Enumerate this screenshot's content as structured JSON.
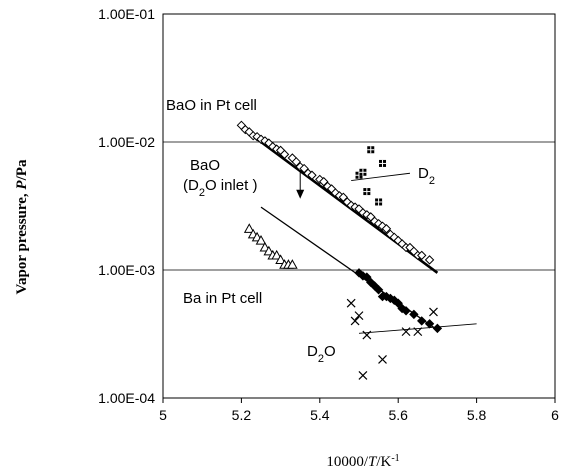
{
  "chart_data": {
    "type": "scatter",
    "xlabel": "10000/T/K-1",
    "ylabel": "Vapor pressure, P/Pa",
    "xlim": [
      5,
      6
    ],
    "ylim": [
      0.0001,
      0.1
    ],
    "y_scale": "log",
    "grid": "horizontal",
    "x_ticks": [
      "5",
      "5.2",
      "5.4",
      "5.6",
      "5.8",
      "6"
    ],
    "y_ticks": [
      "1.00E-01",
      "1.00E-02",
      "1.00E-03",
      "1.00E-04"
    ],
    "annotations": {
      "bao_pt": "BaO in Pt cell",
      "bao_d2o_line1": "BaO",
      "bao_d2o_line2": "(D2O inlet )",
      "d2": "D2",
      "ba_pt": "Ba in Pt cell",
      "d2o": "D2O"
    },
    "series": [
      {
        "marker": "open-diamond",
        "x": [
          5.2,
          5.21,
          5.22,
          5.23,
          5.24,
          5.25,
          5.26,
          5.27,
          5.28,
          5.29,
          5.3,
          5.31,
          5.33,
          5.34,
          5.35,
          5.36,
          5.37,
          5.38,
          5.4,
          5.41,
          5.42,
          5.43,
          5.44,
          5.45,
          5.46,
          5.47,
          5.48,
          5.49,
          5.5,
          5.51,
          5.52,
          5.53,
          5.54,
          5.55,
          5.56,
          5.57,
          5.58,
          5.59,
          5.6,
          5.61,
          5.62,
          5.63,
          5.64,
          5.65,
          5.66,
          5.68
        ],
        "y": [
          0.0135,
          0.0125,
          0.012,
          0.0112,
          0.011,
          0.0105,
          0.0102,
          0.0098,
          0.0092,
          0.0088,
          0.0086,
          0.008,
          0.0075,
          0.007,
          0.0064,
          0.0062,
          0.0057,
          0.0055,
          0.0051,
          0.0049,
          0.0045,
          0.0043,
          0.004,
          0.0038,
          0.0037,
          0.0034,
          0.0032,
          0.0031,
          0.003,
          0.0028,
          0.0027,
          0.0026,
          0.0024,
          0.0023,
          0.0022,
          0.0021,
          0.0019,
          0.0018,
          0.0017,
          0.0016,
          0.0015,
          0.0015,
          0.0014,
          0.0013,
          0.0013,
          0.0012
        ]
      },
      {
        "marker": "open-triangle",
        "x": [
          5.22,
          5.23,
          5.24,
          5.25,
          5.26,
          5.27,
          5.28,
          5.29,
          5.3,
          5.31,
          5.32,
          5.33
        ],
        "y": [
          0.0021,
          0.0019,
          0.0018,
          0.0017,
          0.0015,
          0.0014,
          0.0013,
          0.0013,
          0.0012,
          0.0011,
          0.0011,
          0.0011
        ]
      },
      {
        "marker": "filled-diamond",
        "x": [
          5.5,
          5.51,
          5.52,
          5.53,
          5.54,
          5.55,
          5.56,
          5.57,
          5.58,
          5.59,
          5.6,
          5.61,
          5.62,
          5.64,
          5.66,
          5.68,
          5.7
        ],
        "y": [
          0.00095,
          0.0009,
          0.00088,
          0.0008,
          0.00075,
          0.0007,
          0.00062,
          0.00062,
          0.0006,
          0.00058,
          0.00055,
          0.0005,
          0.00048,
          0.00045,
          0.0004,
          0.00038,
          0.00035
        ]
      },
      {
        "marker": "boxed-plus",
        "x": [
          5.5,
          5.51,
          5.52,
          5.53,
          5.55,
          5.56
        ],
        "y": [
          0.0055,
          0.0058,
          0.0041,
          0.0087,
          0.0034,
          0.0068
        ]
      },
      {
        "marker": "cross",
        "x": [
          5.48,
          5.49,
          5.5,
          5.51,
          5.52,
          5.56,
          5.62,
          5.65,
          5.69
        ],
        "y": [
          0.00055,
          0.0004,
          0.00044,
          0.00015,
          0.00031,
          0.0002,
          0.00033,
          0.00033,
          0.00047
        ]
      }
    ],
    "lines": [
      {
        "x": [
          5.2,
          5.7
        ],
        "y": [
          0.013,
          0.00095
        ],
        "weight": "bold"
      },
      {
        "x": [
          5.25,
          5.7
        ],
        "y": [
          0.0031,
          0.00034
        ],
        "weight": "normal"
      },
      {
        "x": [
          5.48,
          5.63
        ],
        "y": [
          0.005,
          0.0057
        ],
        "weight": "thin"
      },
      {
        "x": [
          5.5,
          5.8
        ],
        "y": [
          0.00032,
          0.00038
        ],
        "weight": "thin"
      }
    ],
    "arrow": {
      "x": [
        5.35,
        5.35
      ],
      "y": [
        0.006,
        0.0036
      ]
    }
  }
}
